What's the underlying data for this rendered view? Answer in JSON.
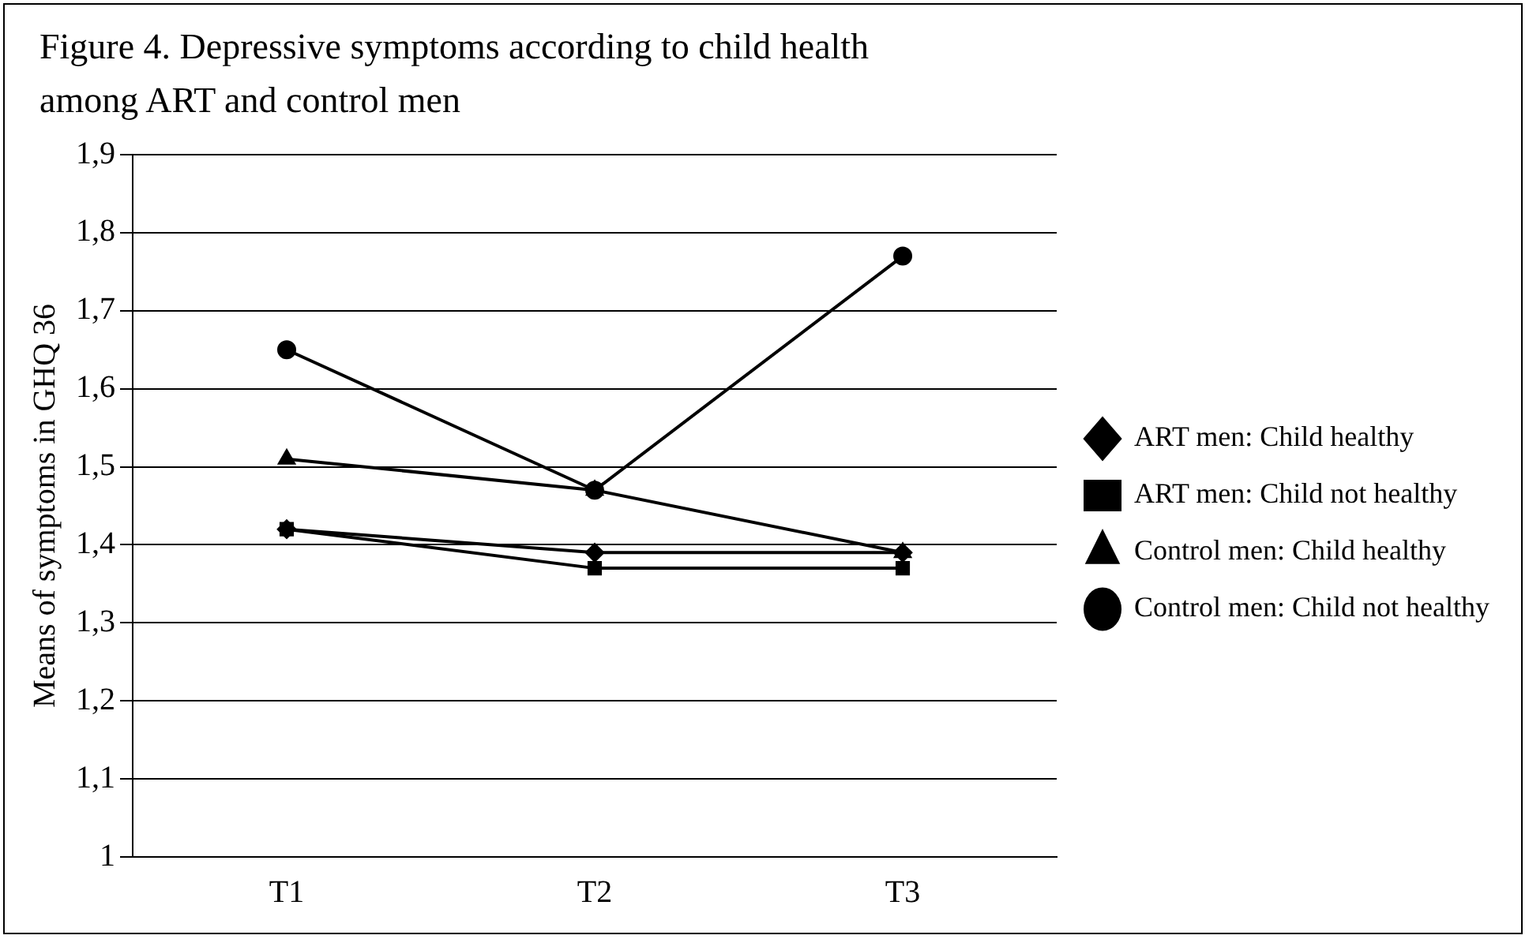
{
  "chart_data": {
    "type": "line",
    "title": "Figure 4. Depressive symptoms according to child health among ART and control men",
    "ylabel": "Means of symptoms in GHQ 36",
    "categories": [
      "T1",
      "T2",
      "T3"
    ],
    "series": [
      {
        "name": "ART men: Child healthy",
        "color": "#000000",
        "marker": "diamond",
        "values": [
          1.42,
          1.39,
          1.39
        ]
      },
      {
        "name": "ART men: Child not healthy",
        "color": "#000000",
        "marker": "square",
        "values": [
          1.42,
          1.37,
          1.37
        ]
      },
      {
        "name": "Control men: Child healthy",
        "color": "#000000",
        "marker": "triangle",
        "values": [
          1.51,
          1.47,
          1.39
        ]
      },
      {
        "name": "Control men: Child not healthy",
        "color": "#000000",
        "marker": "circle",
        "values": [
          1.65,
          1.47,
          1.77
        ]
      }
    ],
    "ylim": [
      1,
      1.9
    ],
    "yticks": [
      1,
      {
        "value": 1.1,
        "label": "1,1"
      },
      {
        "value": 1.2,
        "label": "1,2"
      },
      {
        "value": 1.3,
        "label": "1,3"
      },
      {
        "value": 1.4,
        "label": "1,4"
      },
      {
        "value": 1.5,
        "label": "1,5"
      },
      {
        "value": 1.6,
        "label": "1,6"
      },
      {
        "value": 1.7,
        "label": "1,7"
      },
      {
        "value": 1.8,
        "label": "1,8"
      },
      {
        "value": 1.9,
        "label": "1,9"
      }
    ],
    "grid": "y",
    "legend": "right",
    "line_style": "solid"
  }
}
